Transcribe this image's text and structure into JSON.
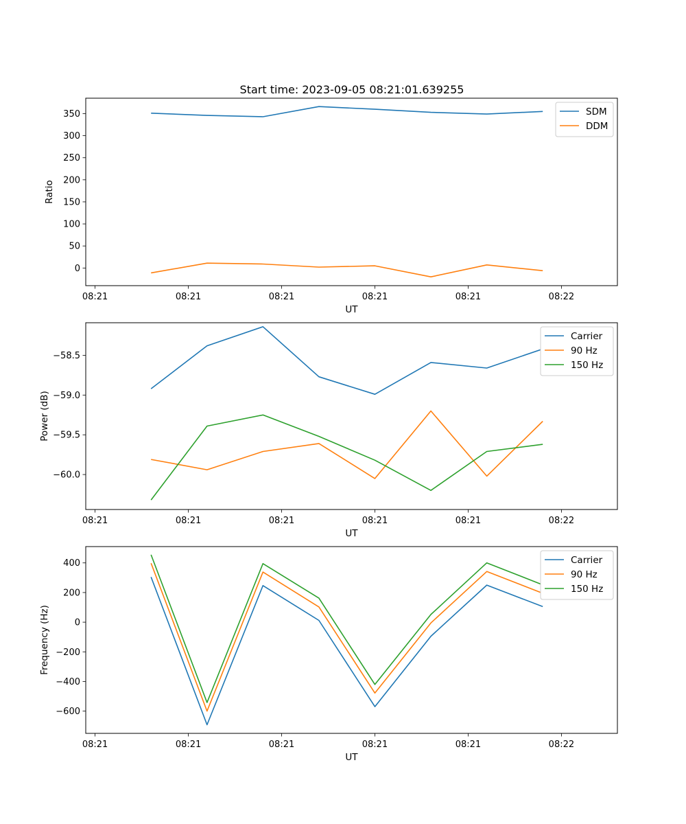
{
  "title": "Start time: 2023-09-05 08:21:01.639255",
  "colors": {
    "blue": "#1f77b4",
    "orange": "#ff7f0e",
    "green": "#2ca02c"
  },
  "chart_data": [
    {
      "type": "line",
      "xlabel": "UT",
      "ylabel": "Ratio",
      "x": [
        0.6,
        1.2,
        1.8,
        2.4,
        3.0,
        3.6,
        4.2,
        4.8
      ],
      "xlim": [
        -0.1,
        5.6
      ],
      "x_tick_values": [
        0,
        1,
        2,
        3,
        4,
        5
      ],
      "x_tick_labels": [
        "08:21",
        "08:21",
        "08:21",
        "08:21",
        "08:21",
        "08:22"
      ],
      "ylim": [
        -40,
        385
      ],
      "y_tick_values": [
        0,
        50,
        100,
        150,
        200,
        250,
        300,
        350
      ],
      "y_tick_labels": [
        "0",
        "50",
        "100",
        "150",
        "200",
        "250",
        "300",
        "350"
      ],
      "legend_position": "top-right",
      "series": [
        {
          "name": "SDM",
          "color": "blue",
          "values": [
            351,
            346,
            343,
            366,
            360,
            353,
            349,
            355
          ]
        },
        {
          "name": "DDM",
          "color": "orange",
          "values": [
            -11,
            11,
            9,
            2,
            5,
            -20,
            7,
            -6
          ]
        }
      ]
    },
    {
      "type": "line",
      "xlabel": "UT",
      "ylabel": "Power (dB)",
      "x": [
        0.6,
        1.2,
        1.8,
        2.4,
        3.0,
        3.6,
        4.2,
        4.8
      ],
      "xlim": [
        -0.1,
        5.6
      ],
      "x_tick_values": [
        0,
        1,
        2,
        3,
        4,
        5
      ],
      "x_tick_labels": [
        "08:21",
        "08:21",
        "08:21",
        "08:21",
        "08:21",
        "08:22"
      ],
      "ylim": [
        -60.44,
        -58.09
      ],
      "y_tick_values": [
        -60.0,
        -59.5,
        -59.0,
        -58.5
      ],
      "y_tick_labels": [
        "−60.0",
        "−59.5",
        "−59.0",
        "−58.5"
      ],
      "legend_position": "top-right",
      "series": [
        {
          "name": "Carrier",
          "color": "blue",
          "values": [
            -58.92,
            -58.38,
            -58.14,
            -58.77,
            -58.99,
            -58.59,
            -58.66,
            -58.42
          ]
        },
        {
          "name": "90 Hz",
          "color": "orange",
          "values": [
            -59.81,
            -59.94,
            -59.71,
            -59.61,
            -60.05,
            -59.2,
            -60.02,
            -59.33
          ]
        },
        {
          "name": "150 Hz",
          "color": "green",
          "values": [
            -60.32,
            -59.39,
            -59.25,
            -59.52,
            -59.82,
            -60.2,
            -59.71,
            -59.62
          ]
        }
      ]
    },
    {
      "type": "line",
      "xlabel": "UT",
      "ylabel": "Frequency (Hz)",
      "x": [
        0.6,
        1.2,
        1.8,
        2.4,
        3.0,
        3.6,
        4.2,
        4.8
      ],
      "xlim": [
        -0.1,
        5.6
      ],
      "x_tick_values": [
        0,
        1,
        2,
        3,
        4,
        5
      ],
      "x_tick_labels": [
        "08:21",
        "08:21",
        "08:21",
        "08:21",
        "08:21",
        "08:22"
      ],
      "ylim": [
        -750,
        510
      ],
      "y_tick_values": [
        -600,
        -400,
        -200,
        0,
        200,
        400
      ],
      "y_tick_labels": [
        "−600",
        "−400",
        "−200",
        "0",
        "200",
        "400"
      ],
      "legend_position": "top-right",
      "series": [
        {
          "name": "Carrier",
          "color": "blue",
          "values": [
            305,
            -692,
            247,
            12,
            -570,
            -95,
            250,
            105
          ]
        },
        {
          "name": "90 Hz",
          "color": "orange",
          "values": [
            398,
            -600,
            338,
            103,
            -478,
            -5,
            342,
            195
          ]
        },
        {
          "name": "150 Hz",
          "color": "green",
          "values": [
            455,
            -542,
            395,
            162,
            -420,
            52,
            400,
            252
          ]
        }
      ]
    }
  ]
}
